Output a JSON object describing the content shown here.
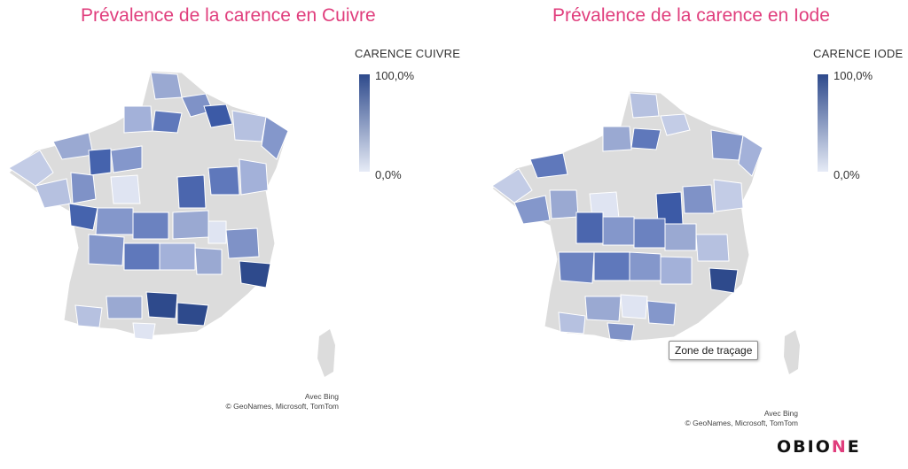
{
  "maps": [
    {
      "title": "Prévalence de la carence en Cuivre",
      "legend": {
        "title": "CARENCE CUIVRE",
        "max_label": "100,0%",
        "min_label": "0,0%"
      },
      "credits": {
        "line1": "Avec Bing",
        "line2": "© GeoNames, Microsoft, TomTom"
      }
    },
    {
      "title": "Prévalence de la carence en Iode",
      "legend": {
        "title": "CARENCE IODE",
        "max_label": "100,0%",
        "min_label": "0,0%"
      },
      "credits": {
        "line1": "Avec Bing",
        "line2": "© GeoNames, Microsoft, TomTom"
      },
      "tooltip": "Zone de traçage"
    }
  ],
  "colors": {
    "title": "#e03e7d",
    "scale_high": "#2e4a8c",
    "scale_low": "#e6ebf6",
    "no_data": "#dcdcdc"
  },
  "logo": {
    "text_a": "OBIO",
    "text_accent": "N",
    "text_b": "E"
  }
}
